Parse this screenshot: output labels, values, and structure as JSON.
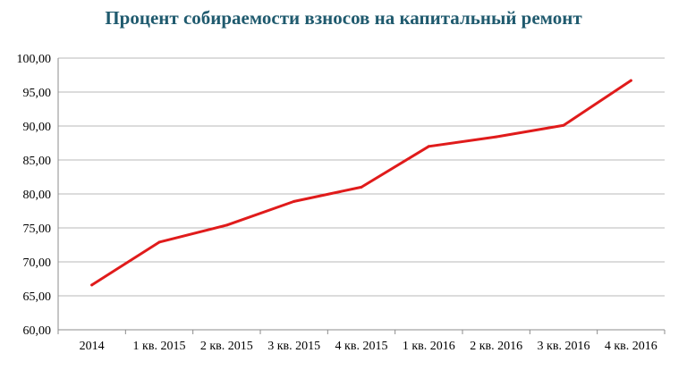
{
  "chart_data": {
    "type": "line",
    "title": "Процент собираемости взносов на капитальный ремонт",
    "categories": [
      "2014",
      "1 кв. 2015",
      "2 кв. 2015",
      "3 кв. 2015",
      "4 кв. 2015",
      "1 кв. 2016",
      "2 кв. 2016",
      "3 кв. 2016",
      "4 кв. 2016"
    ],
    "series": [
      {
        "values": [
          66.6,
          72.9,
          75.4,
          78.9,
          81.0,
          87.0,
          88.4,
          90.1,
          96.7
        ]
      }
    ],
    "ylim": [
      60,
      100
    ],
    "yticks": [
      "60,00",
      "65,00",
      "70,00",
      "75,00",
      "80,00",
      "85,00",
      "90,00",
      "95,00",
      "100,00"
    ],
    "grid": true,
    "legend": "none",
    "colors": {
      "line": "#e01b1b",
      "grid": "#b8b8b8",
      "axis": "#8c8c8c",
      "title": "#1f5a6e"
    }
  }
}
